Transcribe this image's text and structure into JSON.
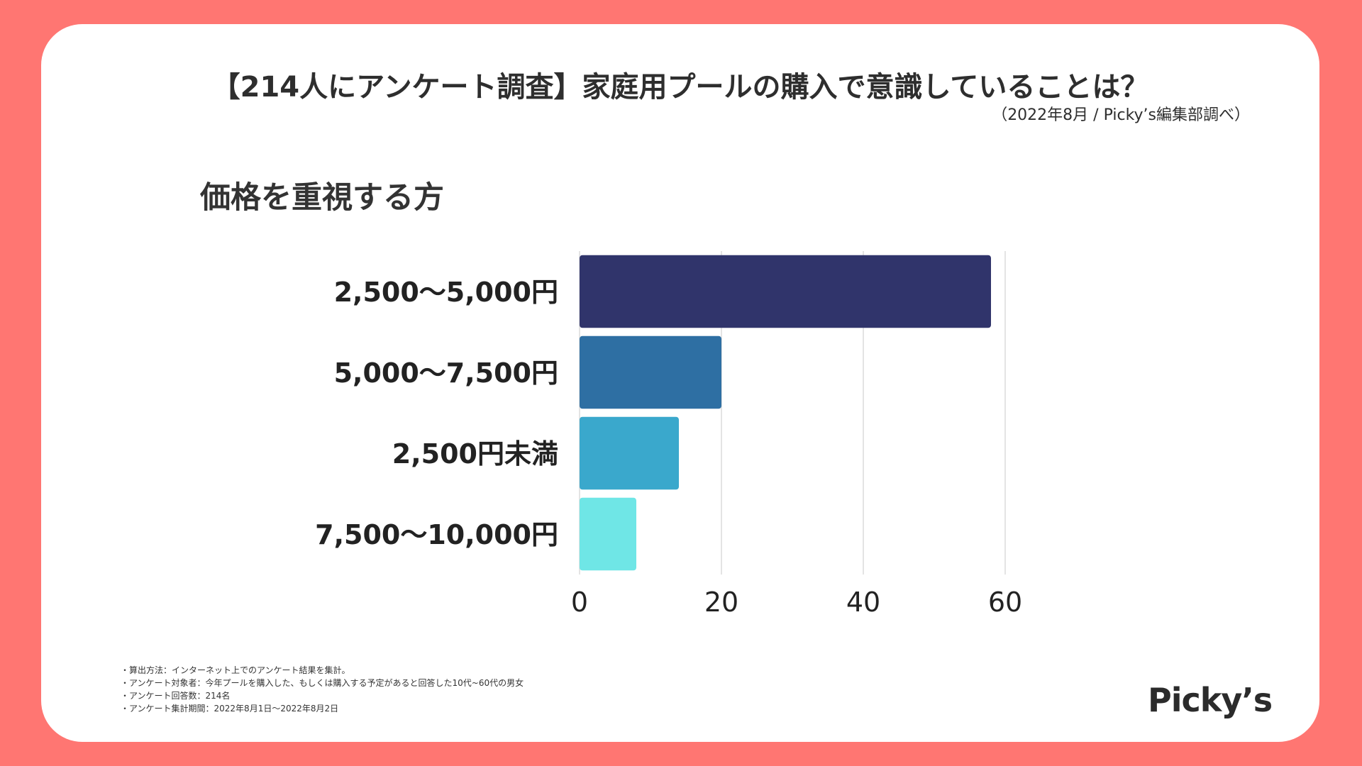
{
  "header": {
    "title": "【214人にアンケート調査】家庭用プールの購入で意識していることは？",
    "subtitle": "（2022年8月 / Picky’s編集部調べ）"
  },
  "chart_data": {
    "type": "bar",
    "orientation": "horizontal",
    "title": "価格を重視する方",
    "categories": [
      "2,500〜5,000円",
      "5,000〜7,500円",
      "2,500円未満",
      "7,500〜10,000円"
    ],
    "values": [
      58,
      20,
      14,
      8
    ],
    "colors": [
      "#30346b",
      "#2e6fa3",
      "#3aa8cc",
      "#6fe6e6"
    ],
    "xlim": [
      0,
      60
    ],
    "xticks": [
      "0",
      "20",
      "40",
      "60"
    ],
    "grid": true,
    "xlabel": "",
    "ylabel": ""
  },
  "notes": [
    "・算出方法：インターネット上でのアンケート結果を集計。",
    "・アンケート対象者：今年プールを購入した、もしくは購入する予定があると回答した10代~60代の男女",
    "・アンケート回答数：214名",
    "・アンケート集計期間：2022年8月1日〜2022年8月2日"
  ],
  "logo": {
    "text": "Picky’s"
  },
  "colors": {
    "background": "#ff7672",
    "card": "#ffffff",
    "gridline": "#dcdcdc"
  }
}
